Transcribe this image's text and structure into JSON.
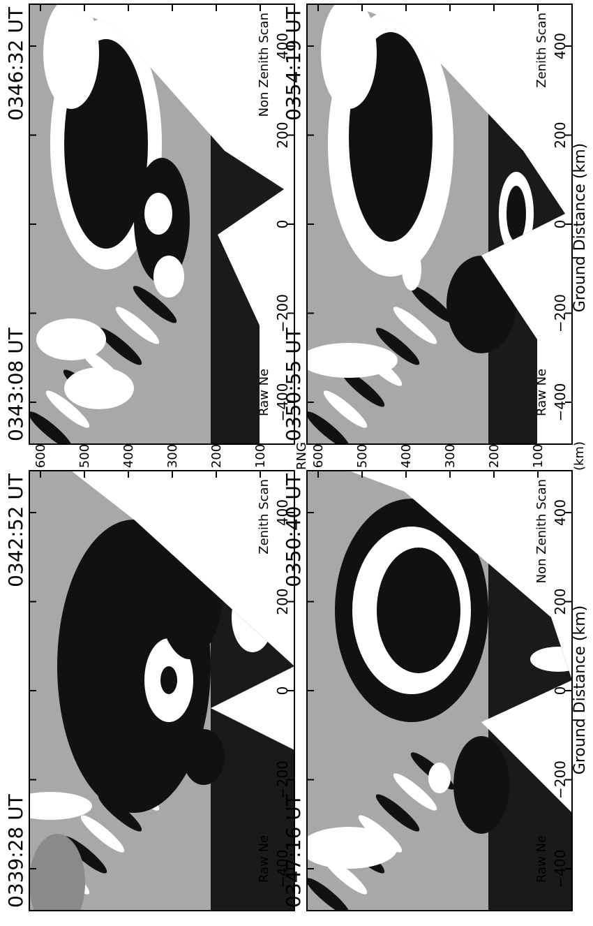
{
  "x_label": "Ground Distance (km)",
  "panels": [
    {
      "time_start": "0339:28 UT",
      "time_end": "0342:52 UT",
      "left_label": "Raw Ne",
      "right_label": "Zenith Scan",
      "xticks": [
        "−400",
        "−200",
        "0",
        "200",
        "400"
      ]
    },
    {
      "time_start": "0343:08 UT",
      "time_end": "0346:32 UT",
      "left_label": "Raw Ne",
      "right_label": "Non Zenith Scan",
      "xticks": [
        "−400",
        "−200",
        "0",
        "200",
        "400"
      ]
    },
    {
      "time_start": "0347:16 UT",
      "time_end": "0350:40 UT",
      "left_label": "Raw Ne",
      "right_label": "Non Zenith Scan",
      "xticks": [
        "−400",
        "−200",
        "0",
        "200",
        "400"
      ]
    },
    {
      "time_start": "0350:55 UT",
      "time_end": "0354:19 UT",
      "left_label": "Raw Ne",
      "right_label": "Zenith Scan",
      "xticks": [
        "−400",
        "−200",
        "0",
        "200",
        "400"
      ]
    }
  ],
  "range_axes": [
    {
      "ticks": [
        "600",
        "500",
        "400",
        "300",
        "200",
        "100"
      ],
      "unit": "RNG"
    },
    {
      "ticks": [
        "600",
        "500",
        "400",
        "300",
        "200",
        "100"
      ],
      "unit": "(km)"
    }
  ]
}
